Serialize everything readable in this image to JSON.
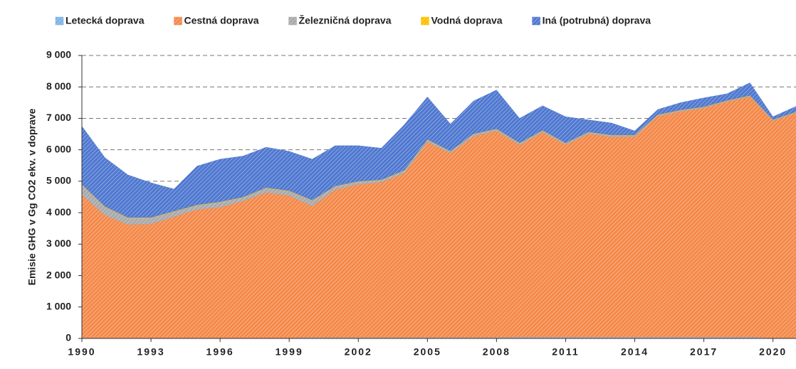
{
  "chart_data": {
    "type": "stacked-area",
    "y_label": "Emisie GHG v Gg CO2 ekv. v doprave",
    "x": [
      1990,
      1991,
      1992,
      1993,
      1994,
      1995,
      1996,
      1997,
      1998,
      1999,
      2000,
      2001,
      2002,
      2003,
      2004,
      2005,
      2006,
      2007,
      2008,
      2009,
      2010,
      2011,
      2012,
      2013,
      2014,
      2015,
      2016,
      2017,
      2018,
      2019,
      2020,
      2021
    ],
    "series": [
      {
        "name": "Letecká doprava",
        "color": "#7fb2e5",
        "values": [
          20,
          20,
          20,
          20,
          20,
          20,
          20,
          20,
          20,
          20,
          30,
          30,
          30,
          30,
          30,
          30,
          30,
          30,
          30,
          40,
          40,
          40,
          40,
          40,
          40,
          40,
          40,
          40,
          40,
          40,
          20,
          20
        ]
      },
      {
        "name": "Cestná doprava",
        "color": "#f4894a",
        "values": [
          4550,
          3900,
          3600,
          3620,
          3850,
          4080,
          4150,
          4350,
          4620,
          4520,
          4180,
          4700,
          4870,
          4930,
          5230,
          6220,
          5860,
          6400,
          6570,
          6110,
          6520,
          6120,
          6470,
          6370,
          6380,
          7030,
          7180,
          7290,
          7490,
          7650,
          6900,
          7150
        ]
      },
      {
        "name": "Železničná doprava",
        "color": "#a9a9a9",
        "values": [
          320,
          270,
          220,
          200,
          170,
          140,
          170,
          120,
          150,
          150,
          180,
          110,
          90,
          80,
          80,
          70,
          60,
          70,
          60,
          60,
          50,
          50,
          50,
          50,
          40,
          40,
          40,
          30,
          30,
          30,
          30,
          30
        ]
      },
      {
        "name": "Vodná doprava",
        "color": "#ffc000",
        "values": [
          10,
          10,
          10,
          10,
          10,
          10,
          10,
          10,
          10,
          10,
          10,
          10,
          10,
          10,
          10,
          10,
          10,
          10,
          10,
          10,
          10,
          10,
          10,
          10,
          10,
          10,
          10,
          10,
          10,
          10,
          10,
          10
        ]
      },
      {
        "name": "Iná (potrubná) doprava",
        "color": "#4f78d0",
        "values": [
          1850,
          1550,
          1350,
          1100,
          700,
          1230,
          1350,
          1300,
          1280,
          1250,
          1300,
          1280,
          1130,
          1000,
          1450,
          1350,
          860,
          1040,
          1230,
          780,
          780,
          830,
          380,
          380,
          130,
          160,
          230,
          280,
          210,
          400,
          90,
          170
        ]
      }
    ],
    "xlim": [
      1990,
      2021
    ],
    "xticks": [
      1990,
      1993,
      1996,
      1999,
      2002,
      2005,
      2008,
      2011,
      2014,
      2017,
      2020
    ],
    "ylim": [
      0,
      9000
    ],
    "yticks": [
      0,
      {
        "value": 1000,
        "label": "1 000"
      },
      {
        "value": 2000,
        "label": "2 000"
      },
      {
        "value": 3000,
        "label": "3 000"
      },
      {
        "value": 4000,
        "label": "4 000"
      },
      {
        "value": 5000,
        "label": "5 000"
      },
      {
        "value": 6000,
        "label": "6 000"
      },
      {
        "value": 7000,
        "label": "7 000"
      },
      {
        "value": 8000,
        "label": "8 000"
      },
      {
        "value": 9000,
        "label": "9 000"
      }
    ],
    "grid": true,
    "legend": "top"
  }
}
